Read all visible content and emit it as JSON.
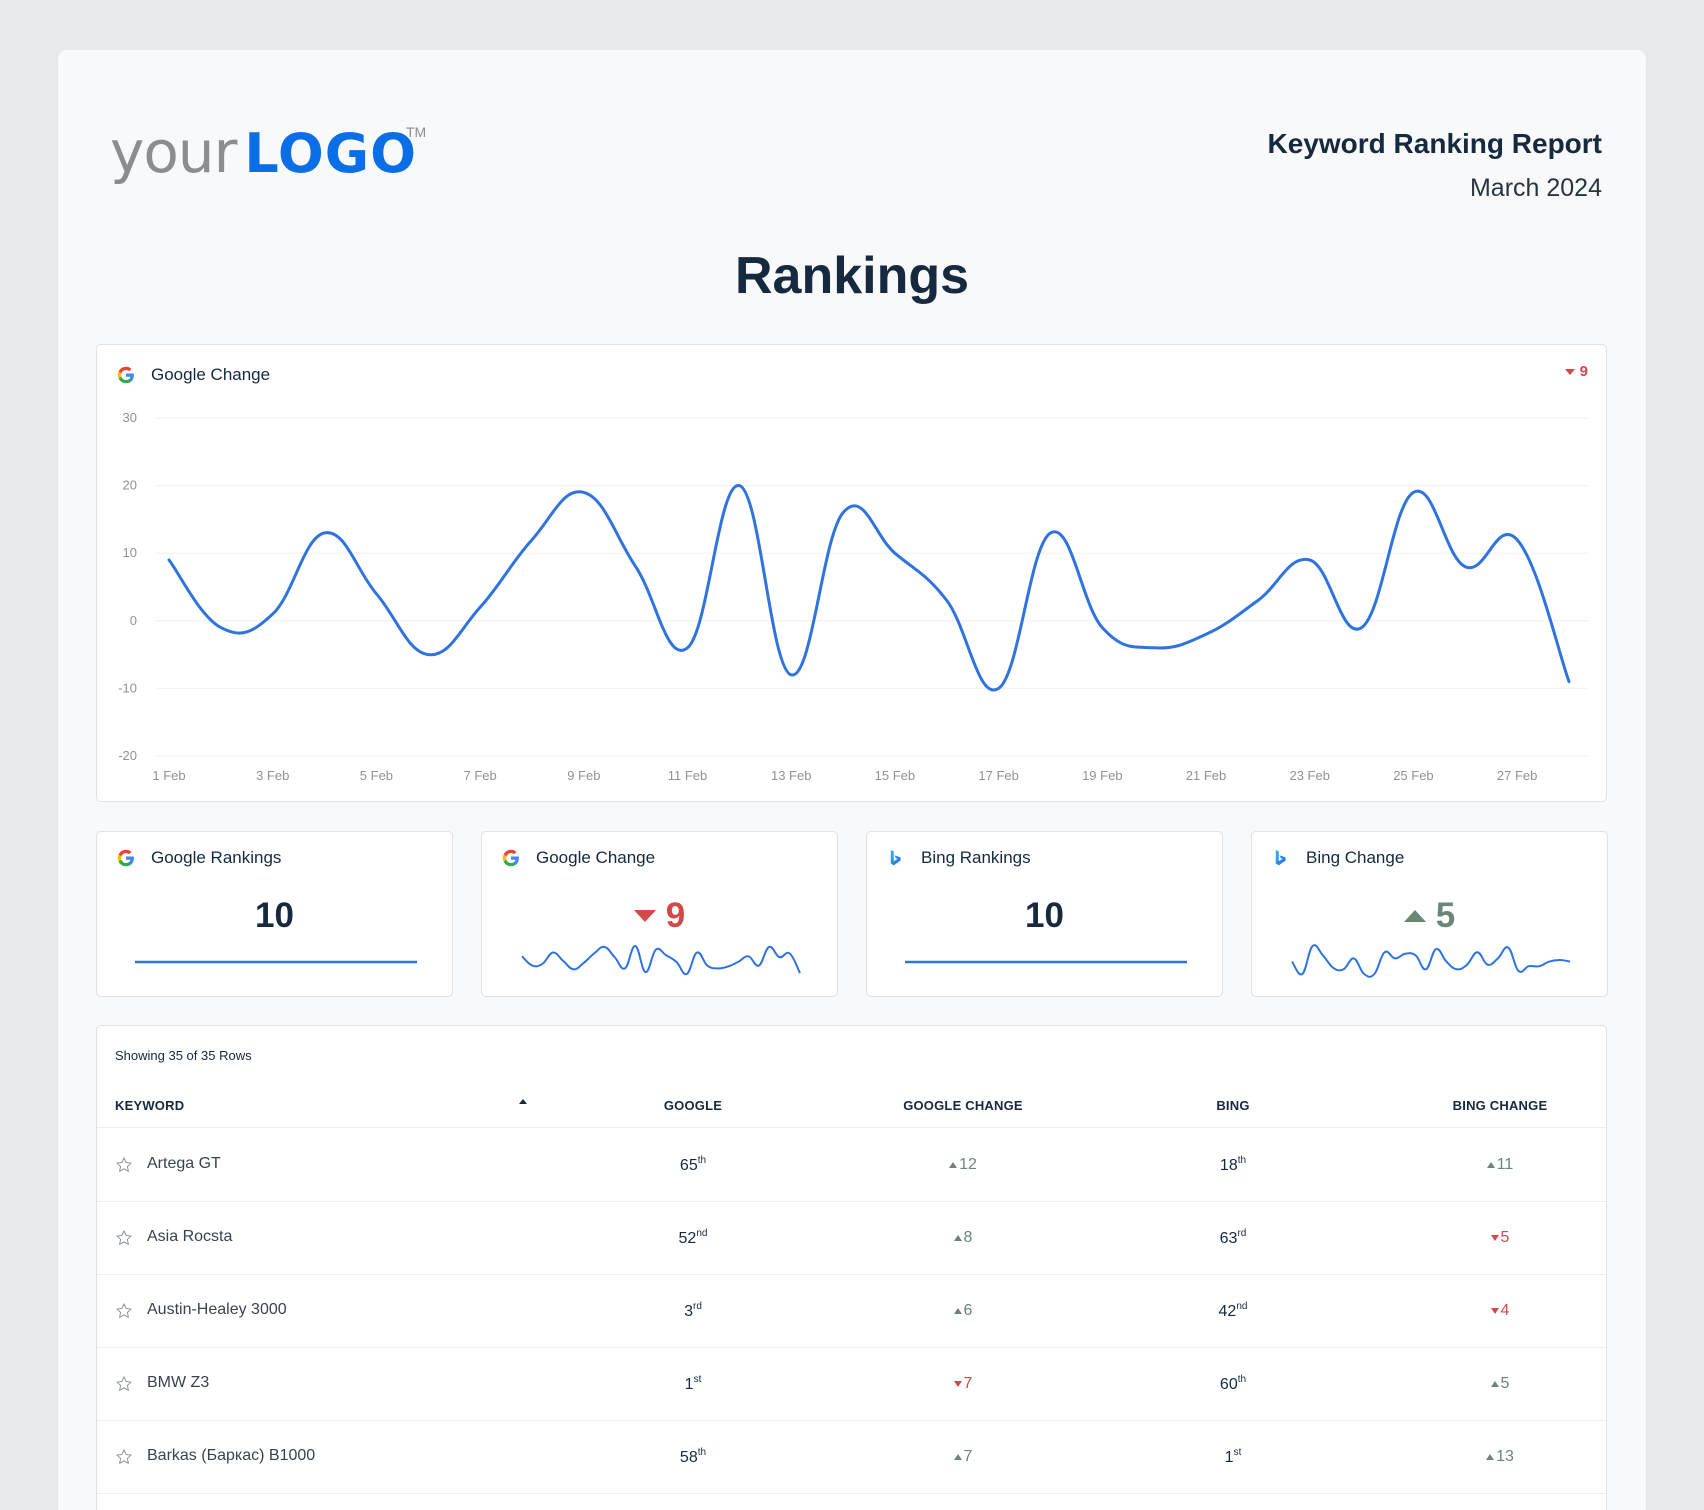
{
  "header": {
    "logo_your": "your",
    "logo_brand": "LOGO",
    "logo_tm": "TM",
    "report_title": "Keyword Ranking Report",
    "report_date": "March 2024"
  },
  "section_title": "Rankings",
  "chart_card": {
    "title": "Google Change",
    "icon": "google-icon",
    "delta": "9",
    "delta_direction": "down"
  },
  "chart_data": {
    "type": "line",
    "title": "Google Change",
    "x": [
      "1 Feb",
      "2 Feb",
      "3 Feb",
      "4 Feb",
      "5 Feb",
      "6 Feb",
      "7 Feb",
      "8 Feb",
      "9 Feb",
      "10 Feb",
      "11 Feb",
      "12 Feb",
      "13 Feb",
      "14 Feb",
      "15 Feb",
      "16 Feb",
      "17 Feb",
      "18 Feb",
      "19 Feb",
      "20 Feb",
      "21 Feb",
      "22 Feb",
      "23 Feb",
      "24 Feb",
      "25 Feb",
      "26 Feb",
      "27 Feb",
      "28 Feb"
    ],
    "series": [
      {
        "name": "Google Change",
        "color": "#2f73e0",
        "values": [
          9,
          -1,
          1,
          13,
          4,
          -5,
          2,
          12,
          19,
          8,
          -4,
          20,
          -8,
          16,
          10,
          3,
          -10,
          13,
          -1,
          -4,
          -2,
          3,
          9,
          -1,
          19,
          8,
          12,
          -9
        ]
      }
    ],
    "x_tick_labels": [
      "1 Feb",
      "3 Feb",
      "5 Feb",
      "7 Feb",
      "9 Feb",
      "11 Feb",
      "13 Feb",
      "15 Feb",
      "17 Feb",
      "19 Feb",
      "21 Feb",
      "23 Feb",
      "25 Feb",
      "27 Feb"
    ],
    "y_ticks": [
      30,
      20,
      10,
      0,
      -10,
      -20
    ],
    "ylim": [
      -20,
      30
    ],
    "xlabel": "",
    "ylabel": "",
    "grid": true,
    "legend": "none"
  },
  "kpis": [
    {
      "title": "Google Rankings",
      "icon": "google-icon",
      "value": "10",
      "direction": "none"
    },
    {
      "title": "Google Change",
      "icon": "google-icon",
      "value": "9",
      "direction": "down"
    },
    {
      "title": "Bing Rankings",
      "icon": "bing-icon",
      "value": "10",
      "direction": "none"
    },
    {
      "title": "Bing Change",
      "icon": "bing-icon",
      "value": "5",
      "direction": "up"
    }
  ],
  "table": {
    "rows_count": "Showing 35 of 35 Rows",
    "columns": [
      "KEYWORD",
      "GOOGLE",
      "GOOGLE CHANGE",
      "BING",
      "BING CHANGE"
    ],
    "sort": {
      "column": "KEYWORD",
      "direction": "asc"
    },
    "rows": [
      {
        "keyword": "Artega GT",
        "google": "65",
        "google_sfx": "th",
        "google_change": "12",
        "google_change_dir": "up",
        "bing": "18",
        "bing_sfx": "th",
        "bing_change": "11",
        "bing_change_dir": "up"
      },
      {
        "keyword": "Asia Rocsta",
        "google": "52",
        "google_sfx": "nd",
        "google_change": "8",
        "google_change_dir": "up",
        "bing": "63",
        "bing_sfx": "rd",
        "bing_change": "5",
        "bing_change_dir": "down"
      },
      {
        "keyword": "Austin-Healey 3000",
        "google": "3",
        "google_sfx": "rd",
        "google_change": "6",
        "google_change_dir": "up",
        "bing": "42",
        "bing_sfx": "nd",
        "bing_change": "4",
        "bing_change_dir": "down"
      },
      {
        "keyword": "BMW Z3",
        "google": "1",
        "google_sfx": "st",
        "google_change": "7",
        "google_change_dir": "down",
        "bing": "60",
        "bing_sfx": "th",
        "bing_change": "5",
        "bing_change_dir": "up"
      },
      {
        "keyword": "Barkas (Баркас) B1000",
        "google": "58",
        "google_sfx": "th",
        "google_change": "7",
        "google_change_dir": "up",
        "bing": "1",
        "bing_sfx": "st",
        "bing_change": "13",
        "bing_change_dir": "up"
      }
    ]
  },
  "colors": {
    "brand_blue": "#0a6ee6",
    "line_blue": "#2f73e0",
    "down_red": "#d04a4a",
    "up_green": "#6b8577",
    "text_dark": "#16293f"
  }
}
